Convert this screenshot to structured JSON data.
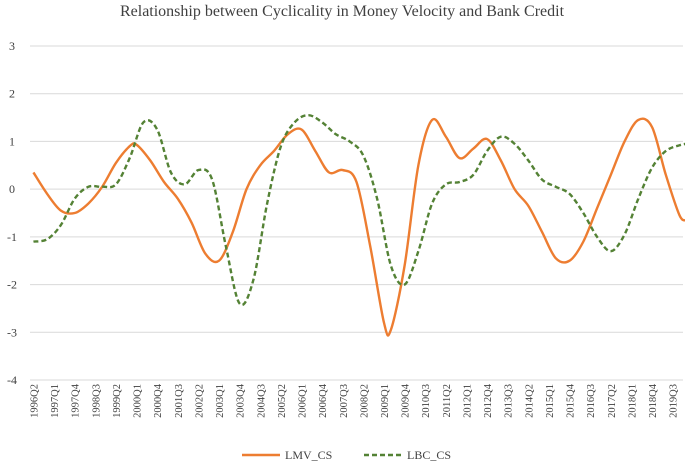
{
  "chart_data": {
    "type": "line",
    "title": "Relationship between Cyclicality in Money Velocity and Bank Credit",
    "xlabel": "",
    "ylabel": "",
    "ylim": [
      -4,
      3
    ],
    "yticks": [
      3,
      2,
      1,
      0,
      -1,
      -2,
      -3,
      -4
    ],
    "grid": true,
    "legend_position": "bottom",
    "x_start": "1996Q2",
    "x_end": "2019Q4",
    "x_tick_labels": [
      "1996Q2",
      "1997Q1",
      "1997Q4",
      "1998Q3",
      "1999Q2",
      "2000Q1",
      "2000Q4",
      "2001Q3",
      "2002Q2",
      "2003Q1",
      "2003Q4",
      "2004Q3",
      "2005Q2",
      "2006Q1",
      "2006Q4",
      "2007Q3",
      "2008Q2",
      "2009Q1",
      "2009Q4",
      "2010Q3",
      "2011Q2",
      "2012Q1",
      "2012Q4",
      "2013Q3",
      "2014Q2",
      "2015Q1",
      "2015Q4",
      "2016Q3",
      "2017Q2",
      "2018Q1",
      "2018Q4",
      "2019Q3"
    ],
    "series": [
      {
        "name": "LMV_CS",
        "color": "#ED7D31",
        "style": "solid",
        "points": [
          [
            "1996Q2",
            0.35
          ],
          [
            "1996Q4",
            -0.1
          ],
          [
            "1997Q2",
            -0.45
          ],
          [
            "1997Q4",
            -0.5
          ],
          [
            "1998Q2",
            -0.3
          ],
          [
            "1998Q4",
            0.05
          ],
          [
            "1999Q2",
            0.55
          ],
          [
            "1999Q4",
            0.9
          ],
          [
            "2000Q1",
            0.93
          ],
          [
            "2000Q3",
            0.6
          ],
          [
            "2001Q1",
            0.15
          ],
          [
            "2001Q3",
            -0.2
          ],
          [
            "2002Q1",
            -0.7
          ],
          [
            "2002Q3",
            -1.35
          ],
          [
            "2003Q1",
            -1.5
          ],
          [
            "2003Q3",
            -0.9
          ],
          [
            "2004Q1",
            0.0
          ],
          [
            "2004Q3",
            0.5
          ],
          [
            "2005Q1",
            0.8
          ],
          [
            "2005Q3",
            1.15
          ],
          [
            "2006Q1",
            1.25
          ],
          [
            "2006Q3",
            0.8
          ],
          [
            "2007Q1",
            0.35
          ],
          [
            "2007Q3",
            0.4
          ],
          [
            "2008Q1",
            0.15
          ],
          [
            "2008Q3",
            -1.2
          ],
          [
            "2009Q1",
            -2.8
          ],
          [
            "2009Q2",
            -2.95
          ],
          [
            "2009Q4",
            -1.6
          ],
          [
            "2010Q2",
            0.5
          ],
          [
            "2010Q4",
            1.45
          ],
          [
            "2011Q2",
            1.1
          ],
          [
            "2011Q4",
            0.65
          ],
          [
            "2012Q2",
            0.85
          ],
          [
            "2012Q4",
            1.05
          ],
          [
            "2013Q2",
            0.6
          ],
          [
            "2013Q4",
            0.0
          ],
          [
            "2014Q2",
            -0.35
          ],
          [
            "2014Q4",
            -0.9
          ],
          [
            "2015Q2",
            -1.45
          ],
          [
            "2015Q4",
            -1.5
          ],
          [
            "2016Q2",
            -1.1
          ],
          [
            "2016Q4",
            -0.4
          ],
          [
            "2017Q2",
            0.3
          ],
          [
            "2017Q4",
            1.0
          ],
          [
            "2018Q2",
            1.45
          ],
          [
            "2018Q4",
            1.3
          ],
          [
            "2019Q2",
            0.3
          ],
          [
            "2019Q4",
            -0.55
          ],
          [
            "2020Q1",
            -0.65
          ]
        ]
      },
      {
        "name": "LBC_CS",
        "color": "#548235",
        "style": "dashed",
        "points": [
          [
            "1996Q2",
            -1.1
          ],
          [
            "1996Q4",
            -1.05
          ],
          [
            "1997Q2",
            -0.75
          ],
          [
            "1997Q4",
            -0.2
          ],
          [
            "1998Q2",
            0.05
          ],
          [
            "1998Q4",
            0.05
          ],
          [
            "1999Q2",
            0.1
          ],
          [
            "1999Q4",
            0.65
          ],
          [
            "2000Q2",
            1.4
          ],
          [
            "2000Q4",
            1.25
          ],
          [
            "2001Q2",
            0.35
          ],
          [
            "2001Q4",
            0.1
          ],
          [
            "2002Q2",
            0.4
          ],
          [
            "2002Q4",
            0.2
          ],
          [
            "2003Q2",
            -1.2
          ],
          [
            "2003Q4",
            -2.4
          ],
          [
            "2004Q2",
            -1.9
          ],
          [
            "2004Q4",
            -0.3
          ],
          [
            "2005Q2",
            0.9
          ],
          [
            "2005Q4",
            1.4
          ],
          [
            "2006Q2",
            1.55
          ],
          [
            "2006Q4",
            1.4
          ],
          [
            "2007Q2",
            1.15
          ],
          [
            "2007Q4",
            1.0
          ],
          [
            "2008Q2",
            0.7
          ],
          [
            "2008Q4",
            -0.2
          ],
          [
            "2009Q2",
            -1.6
          ],
          [
            "2009Q4",
            -2.0
          ],
          [
            "2010Q2",
            -1.3
          ],
          [
            "2010Q4",
            -0.3
          ],
          [
            "2011Q2",
            0.1
          ],
          [
            "2011Q4",
            0.15
          ],
          [
            "2012Q2",
            0.3
          ],
          [
            "2012Q4",
            0.8
          ],
          [
            "2013Q2",
            1.1
          ],
          [
            "2013Q4",
            0.95
          ],
          [
            "2014Q2",
            0.6
          ],
          [
            "2014Q4",
            0.2
          ],
          [
            "2015Q2",
            0.05
          ],
          [
            "2015Q4",
            -0.1
          ],
          [
            "2016Q2",
            -0.5
          ],
          [
            "2016Q4",
            -1.0
          ],
          [
            "2017Q2",
            -1.3
          ],
          [
            "2017Q4",
            -0.95
          ],
          [
            "2018Q2",
            -0.2
          ],
          [
            "2018Q4",
            0.45
          ],
          [
            "2019Q2",
            0.8
          ],
          [
            "2019Q4",
            0.92
          ],
          [
            "2020Q1",
            0.95
          ]
        ]
      }
    ]
  }
}
